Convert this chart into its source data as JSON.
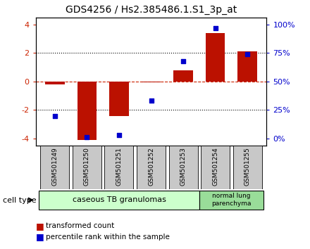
{
  "title": "GDS4256 / Hs2.385486.1.S1_3p_at",
  "samples": [
    "GSM501249",
    "GSM501250",
    "GSM501251",
    "GSM501252",
    "GSM501253",
    "GSM501254",
    "GSM501255"
  ],
  "transformed_count": [
    -0.2,
    -4.1,
    -2.4,
    -0.05,
    0.8,
    3.4,
    2.1
  ],
  "percentile_rank": [
    20,
    1,
    3,
    33,
    68,
    97,
    74
  ],
  "ylim_left": [
    -4.5,
    4.5
  ],
  "yticks_left": [
    -4,
    -2,
    0,
    2,
    4
  ],
  "ylim_right": [
    0,
    100
  ],
  "yticks_right": [
    0,
    25,
    50,
    75,
    100
  ],
  "yticklabels_right": [
    "0%",
    "25%",
    "50%",
    "75%",
    "100%"
  ],
  "bar_color": "#bb1100",
  "dot_color": "#0000cc",
  "group1_samples": [
    0,
    1,
    2,
    3,
    4
  ],
  "group2_samples": [
    5,
    6
  ],
  "group1_label": "caseous TB granulomas",
  "group2_label": "normal lung\nparenchyma",
  "cell_type_label": "cell type",
  "legend_bar_label": "transformed count",
  "legend_dot_label": "percentile rank within the sample",
  "group1_color": "#ccffcc",
  "group2_color": "#99dd99",
  "sample_box_color": "#c8c8c8",
  "bg_color": "#ffffff",
  "left_tick_color": "#cc2200",
  "right_tick_color": "#0000cc"
}
